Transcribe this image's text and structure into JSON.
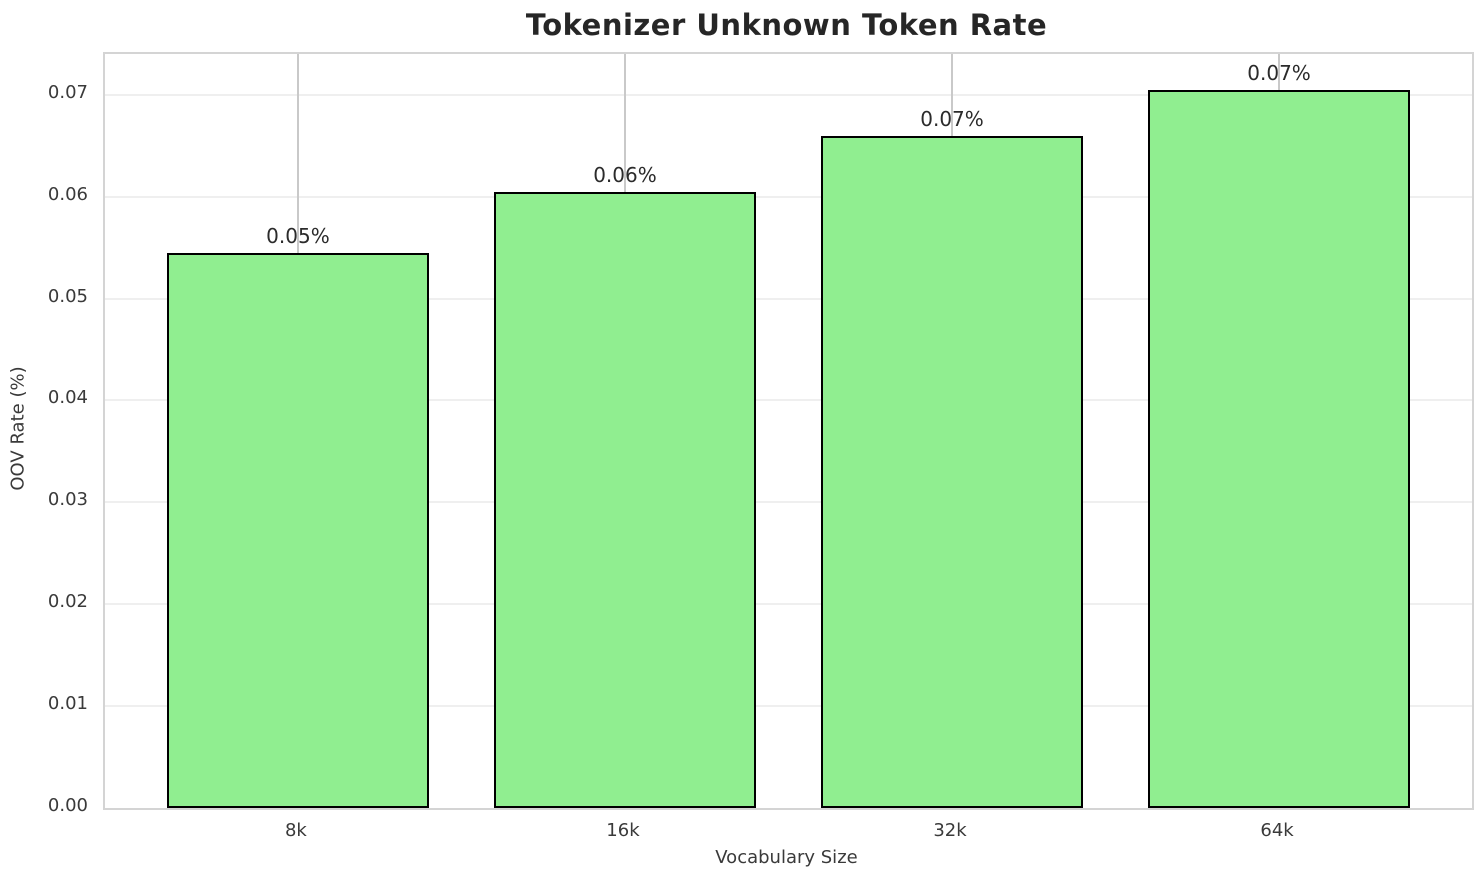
{
  "chart_data": {
    "type": "bar",
    "title": "Tokenizer Unknown Token Rate",
    "xlabel": "Vocabulary Size",
    "ylabel": "OOV Rate (%)",
    "categories": [
      "8k",
      "16k",
      "32k",
      "64k"
    ],
    "values": [
      0.0545,
      0.0605,
      0.066,
      0.0705
    ],
    "bar_labels": [
      "0.05%",
      "0.06%",
      "0.07%",
      "0.07%"
    ],
    "yticks": [
      "0.00",
      "0.01",
      "0.02",
      "0.03",
      "0.04",
      "0.05",
      "0.06",
      "0.07"
    ],
    "ylim": [
      0,
      0.074
    ],
    "grid": true,
    "legend": "none",
    "bar_color": "#90ee90",
    "bar_edge_color": "#000000",
    "h_grid_color": "#efefef",
    "v_grid_color": "#c9c9c9"
  }
}
